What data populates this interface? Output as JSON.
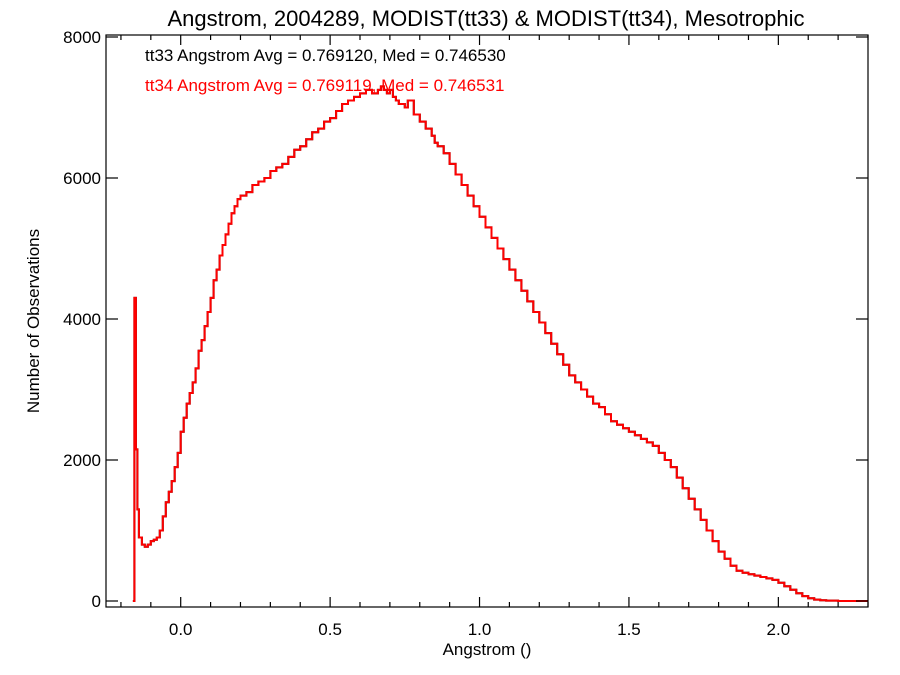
{
  "chart_data": {
    "type": "line",
    "title": "Angstrom, 2004289, MODIST(tt33) & MODIST(tt34), Mesotrophic",
    "xlabel": "Angstrom ()",
    "ylabel": "Number of Observations",
    "xlim": [
      -0.25,
      2.3
    ],
    "ylim": [
      0,
      8000
    ],
    "xticks": [
      0.0,
      0.5,
      1.0,
      1.5,
      2.0
    ],
    "xtick_labels": [
      "0.0",
      "0.5",
      "1.0",
      "1.5",
      "2.0"
    ],
    "yticks": [
      0,
      2000,
      4000,
      6000,
      8000
    ],
    "ytick_labels": [
      "0",
      "2000",
      "4000",
      "6000",
      "8000"
    ],
    "grid": false,
    "stats": [
      {
        "text": "tt33 Angstrom Avg = 0.769120, Med = 0.746530",
        "color": "#000000"
      },
      {
        "text": "tt34 Angstrom Avg = 0.769119, Med = 0.746531",
        "color": "#ff0000"
      }
    ],
    "series": [
      {
        "color": "#000000",
        "x": [
          -0.16,
          -0.155,
          -0.15,
          -0.145,
          -0.14,
          -0.13,
          -0.12,
          -0.11,
          -0.1,
          -0.09,
          -0.08,
          -0.07,
          -0.06,
          -0.05,
          -0.04,
          -0.03,
          -0.02,
          -0.01,
          0.0,
          0.01,
          0.02,
          0.03,
          0.04,
          0.05,
          0.06,
          0.07,
          0.08,
          0.09,
          0.1,
          0.11,
          0.12,
          0.13,
          0.14,
          0.15,
          0.16,
          0.17,
          0.18,
          0.19,
          0.2,
          0.22,
          0.24,
          0.26,
          0.28,
          0.3,
          0.32,
          0.34,
          0.36,
          0.38,
          0.4,
          0.42,
          0.44,
          0.46,
          0.48,
          0.5,
          0.52,
          0.54,
          0.56,
          0.58,
          0.6,
          0.62,
          0.64,
          0.66,
          0.67,
          0.68,
          0.69,
          0.7,
          0.71,
          0.72,
          0.73,
          0.74,
          0.75,
          0.76,
          0.78,
          0.8,
          0.82,
          0.84,
          0.85,
          0.86,
          0.88,
          0.9,
          0.92,
          0.94,
          0.96,
          0.98,
          1.0,
          1.02,
          1.04,
          1.06,
          1.08,
          1.1,
          1.12,
          1.14,
          1.16,
          1.18,
          1.2,
          1.22,
          1.24,
          1.26,
          1.28,
          1.3,
          1.32,
          1.34,
          1.36,
          1.38,
          1.4,
          1.42,
          1.44,
          1.46,
          1.48,
          1.5,
          1.52,
          1.54,
          1.56,
          1.58,
          1.6,
          1.62,
          1.64,
          1.66,
          1.68,
          1.7,
          1.72,
          1.74,
          1.76,
          1.78,
          1.8,
          1.82,
          1.84,
          1.86,
          1.88,
          1.9,
          1.92,
          1.94,
          1.96,
          1.98,
          2.0,
          2.02,
          2.04,
          2.06,
          2.08,
          2.1,
          2.12,
          2.14,
          2.16,
          2.2,
          2.3
        ],
        "y": [
          0,
          4300,
          2150,
          1300,
          900,
          800,
          770,
          800,
          850,
          870,
          900,
          1000,
          1200,
          1400,
          1550,
          1700,
          1900,
          2100,
          2400,
          2600,
          2800,
          2950,
          3100,
          3300,
          3550,
          3700,
          3900,
          4100,
          4300,
          4550,
          4700,
          4900,
          5050,
          5200,
          5350,
          5500,
          5600,
          5700,
          5750,
          5800,
          5900,
          5950,
          6000,
          6100,
          6150,
          6200,
          6300,
          6400,
          6450,
          6550,
          6650,
          6700,
          6800,
          6850,
          6950,
          7050,
          7100,
          7150,
          7200,
          7250,
          7200,
          7250,
          7300,
          7250,
          7200,
          7250,
          7150,
          7100,
          7050,
          7050,
          7000,
          7100,
          6900,
          6800,
          6700,
          6600,
          6500,
          6450,
          6350,
          6200,
          6050,
          5900,
          5750,
          5600,
          5450,
          5300,
          5150,
          5000,
          4850,
          4700,
          4550,
          4400,
          4250,
          4100,
          3950,
          3800,
          3650,
          3500,
          3350,
          3200,
          3100,
          3000,
          2900,
          2800,
          2750,
          2650,
          2550,
          2500,
          2450,
          2400,
          2350,
          2300,
          2250,
          2200,
          2100,
          2000,
          1900,
          1750,
          1600,
          1450,
          1300,
          1150,
          1000,
          850,
          700,
          600,
          500,
          430,
          400,
          380,
          360,
          340,
          320,
          300,
          260,
          210,
          160,
          110,
          70,
          40,
          20,
          10,
          5,
          0,
          0
        ]
      },
      {
        "color": "#ff0000",
        "x": [
          -0.16,
          -0.155,
          -0.15,
          -0.145,
          -0.14,
          -0.13,
          -0.12,
          -0.11,
          -0.1,
          -0.09,
          -0.08,
          -0.07,
          -0.06,
          -0.05,
          -0.04,
          -0.03,
          -0.02,
          -0.01,
          0.0,
          0.01,
          0.02,
          0.03,
          0.04,
          0.05,
          0.06,
          0.07,
          0.08,
          0.09,
          0.1,
          0.11,
          0.12,
          0.13,
          0.14,
          0.15,
          0.16,
          0.17,
          0.18,
          0.19,
          0.2,
          0.22,
          0.24,
          0.26,
          0.28,
          0.3,
          0.32,
          0.34,
          0.36,
          0.38,
          0.4,
          0.42,
          0.44,
          0.46,
          0.48,
          0.5,
          0.52,
          0.54,
          0.56,
          0.58,
          0.6,
          0.62,
          0.64,
          0.66,
          0.67,
          0.68,
          0.69,
          0.7,
          0.71,
          0.72,
          0.73,
          0.74,
          0.75,
          0.76,
          0.78,
          0.8,
          0.82,
          0.84,
          0.85,
          0.86,
          0.88,
          0.9,
          0.92,
          0.94,
          0.96,
          0.98,
          1.0,
          1.02,
          1.04,
          1.06,
          1.08,
          1.1,
          1.12,
          1.14,
          1.16,
          1.18,
          1.2,
          1.22,
          1.24,
          1.26,
          1.28,
          1.3,
          1.32,
          1.34,
          1.36,
          1.38,
          1.4,
          1.42,
          1.44,
          1.46,
          1.48,
          1.5,
          1.52,
          1.54,
          1.56,
          1.58,
          1.6,
          1.62,
          1.64,
          1.66,
          1.68,
          1.7,
          1.72,
          1.74,
          1.76,
          1.78,
          1.8,
          1.82,
          1.84,
          1.86,
          1.88,
          1.9,
          1.92,
          1.94,
          1.96,
          1.98,
          2.0,
          2.02,
          2.04,
          2.06,
          2.08,
          2.1,
          2.12,
          2.14,
          2.16,
          2.2,
          2.3
        ],
        "y": [
          0,
          4300,
          2150,
          1300,
          900,
          800,
          770,
          800,
          850,
          870,
          900,
          1000,
          1200,
          1400,
          1550,
          1700,
          1900,
          2100,
          2400,
          2600,
          2800,
          2950,
          3100,
          3300,
          3550,
          3700,
          3900,
          4100,
          4300,
          4550,
          4700,
          4900,
          5050,
          5200,
          5350,
          5500,
          5600,
          5700,
          5750,
          5800,
          5900,
          5950,
          6000,
          6100,
          6150,
          6200,
          6300,
          6400,
          6450,
          6550,
          6650,
          6700,
          6800,
          6850,
          6950,
          7050,
          7100,
          7150,
          7200,
          7250,
          7200,
          7250,
          7300,
          7250,
          7200,
          7250,
          7150,
          7100,
          7050,
          7050,
          7000,
          7100,
          6900,
          6800,
          6700,
          6600,
          6500,
          6450,
          6350,
          6200,
          6050,
          5900,
          5750,
          5600,
          5450,
          5300,
          5150,
          5000,
          4850,
          4700,
          4550,
          4400,
          4250,
          4100,
          3950,
          3800,
          3650,
          3500,
          3350,
          3200,
          3100,
          3000,
          2900,
          2800,
          2750,
          2650,
          2550,
          2500,
          2450,
          2400,
          2350,
          2300,
          2250,
          2200,
          2100,
          2000,
          1900,
          1750,
          1600,
          1450,
          1300,
          1150,
          1000,
          850,
          700,
          600,
          500,
          430,
          400,
          380,
          360,
          340,
          320,
          300,
          260,
          210,
          160,
          110,
          70,
          40,
          20,
          10,
          5,
          0,
          0
        ]
      }
    ]
  }
}
